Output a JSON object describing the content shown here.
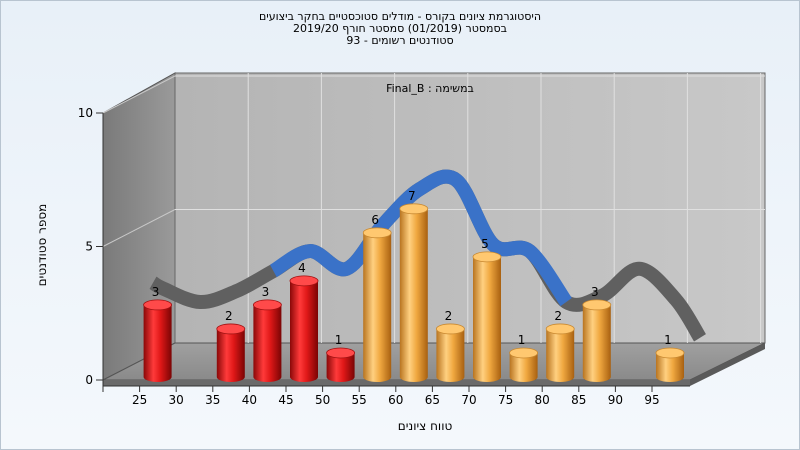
{
  "chart_data": {
    "type": "bar",
    "title_lines": [
      "היסטוגרמת ציונים בקורס - מודלים סטוכסטיים בחקר ביצועים",
      "בסמסטר  (01/2019)  סמסטר חורף  2019/20",
      "סטודנטים רשומים - 93"
    ],
    "subtitle": "במשימה : Final_B",
    "xlabel": "טווח ציונים",
    "ylabel": "מספר סטודנטים",
    "ylim": [
      0,
      10
    ],
    "y_ticks": [
      "0",
      "5",
      "10"
    ],
    "x_tick_labels": [
      "25",
      "30",
      "35",
      "40",
      "45",
      "50",
      "55",
      "60",
      "65",
      "70",
      "75",
      "80",
      "85",
      "90",
      "95"
    ],
    "categories": [
      "25",
      "30",
      "35",
      "40",
      "45",
      "50",
      "55",
      "60",
      "65",
      "70",
      "75",
      "80",
      "85",
      "90",
      "95"
    ],
    "values": [
      3,
      0,
      2,
      3,
      4,
      1,
      6,
      7,
      2,
      5,
      1,
      2,
      3,
      0,
      1
    ],
    "bar_colors": [
      "#e01818",
      "#e01818",
      "#e01818",
      "#e01818",
      "#e01818",
      "#e01818",
      "#f0a840",
      "#f0a840",
      "#f0a840",
      "#f0a840",
      "#f0a840",
      "#f0a840",
      "#f0a840",
      "#f0a840",
      "#f0a840"
    ],
    "trend_line": {
      "color": "#3a72c8",
      "shadow_color": "#606060",
      "values": [
        2.9,
        2.3,
        2.8,
        3.7,
        4.6,
        3.8,
        5.8,
        7.4,
        7.8,
        4.9,
        4.6,
        2.3,
        2.6,
        3.8,
        2.4
      ]
    },
    "grid": true,
    "legend": "none"
  }
}
